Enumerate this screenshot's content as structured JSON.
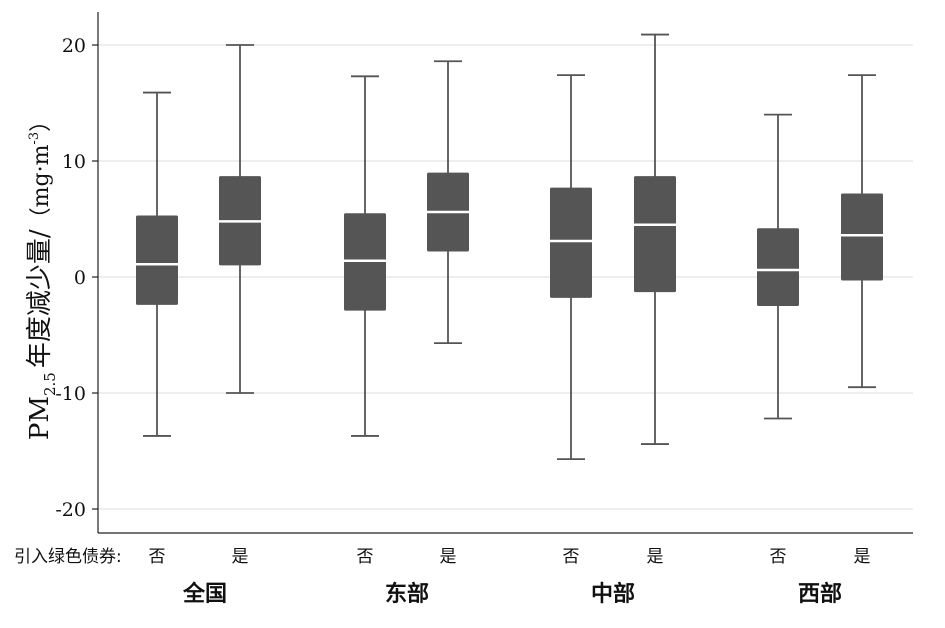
{
  "chart_data": {
    "type": "box",
    "ylabel": {
      "main": "PM",
      "sub": "2.5",
      "cn": "年度减少量/",
      "unit_open": "（mg·m",
      "unit_sup": "-3",
      "unit_close": "）"
    },
    "ylim": [
      -22,
      23
    ],
    "yticks": [
      20,
      10,
      0,
      -10,
      -20
    ],
    "ytick_labels": [
      "20",
      "10",
      "0",
      "-10",
      "-20"
    ],
    "grid": true,
    "box_color": "#555555",
    "median_color": "#ffffff",
    "x_prefix": "引入绿色债券:",
    "groups": [
      {
        "name": "全国",
        "boxes": [
          {
            "label": "否",
            "whislo": -13.7,
            "q1": -2.4,
            "med": 1.1,
            "q3": 5.3,
            "whishi": 15.9
          },
          {
            "label": "是",
            "whislo": -10.0,
            "q1": 1.0,
            "med": 4.8,
            "q3": 8.7,
            "whishi": 20.0
          }
        ]
      },
      {
        "name": "东部",
        "boxes": [
          {
            "label": "否",
            "whislo": -13.7,
            "q1": -2.9,
            "med": 1.4,
            "q3": 5.5,
            "whishi": 17.3
          },
          {
            "label": "是",
            "whislo": -5.7,
            "q1": 2.2,
            "med": 5.6,
            "q3": 9.0,
            "whishi": 18.6
          }
        ]
      },
      {
        "name": "中部",
        "boxes": [
          {
            "label": "否",
            "whislo": -15.7,
            "q1": -1.8,
            "med": 3.1,
            "q3": 7.7,
            "whishi": 17.4
          },
          {
            "label": "是",
            "whislo": -14.4,
            "q1": -1.3,
            "med": 4.5,
            "q3": 8.7,
            "whishi": 20.9
          }
        ]
      },
      {
        "name": "西部",
        "boxes": [
          {
            "label": "否",
            "whislo": -12.2,
            "q1": -2.5,
            "med": 0.6,
            "q3": 4.2,
            "whishi": 14.0
          },
          {
            "label": "是",
            "whislo": -9.5,
            "q1": -0.3,
            "med": 3.6,
            "q3": 7.2,
            "whishi": 17.4
          }
        ]
      }
    ]
  }
}
